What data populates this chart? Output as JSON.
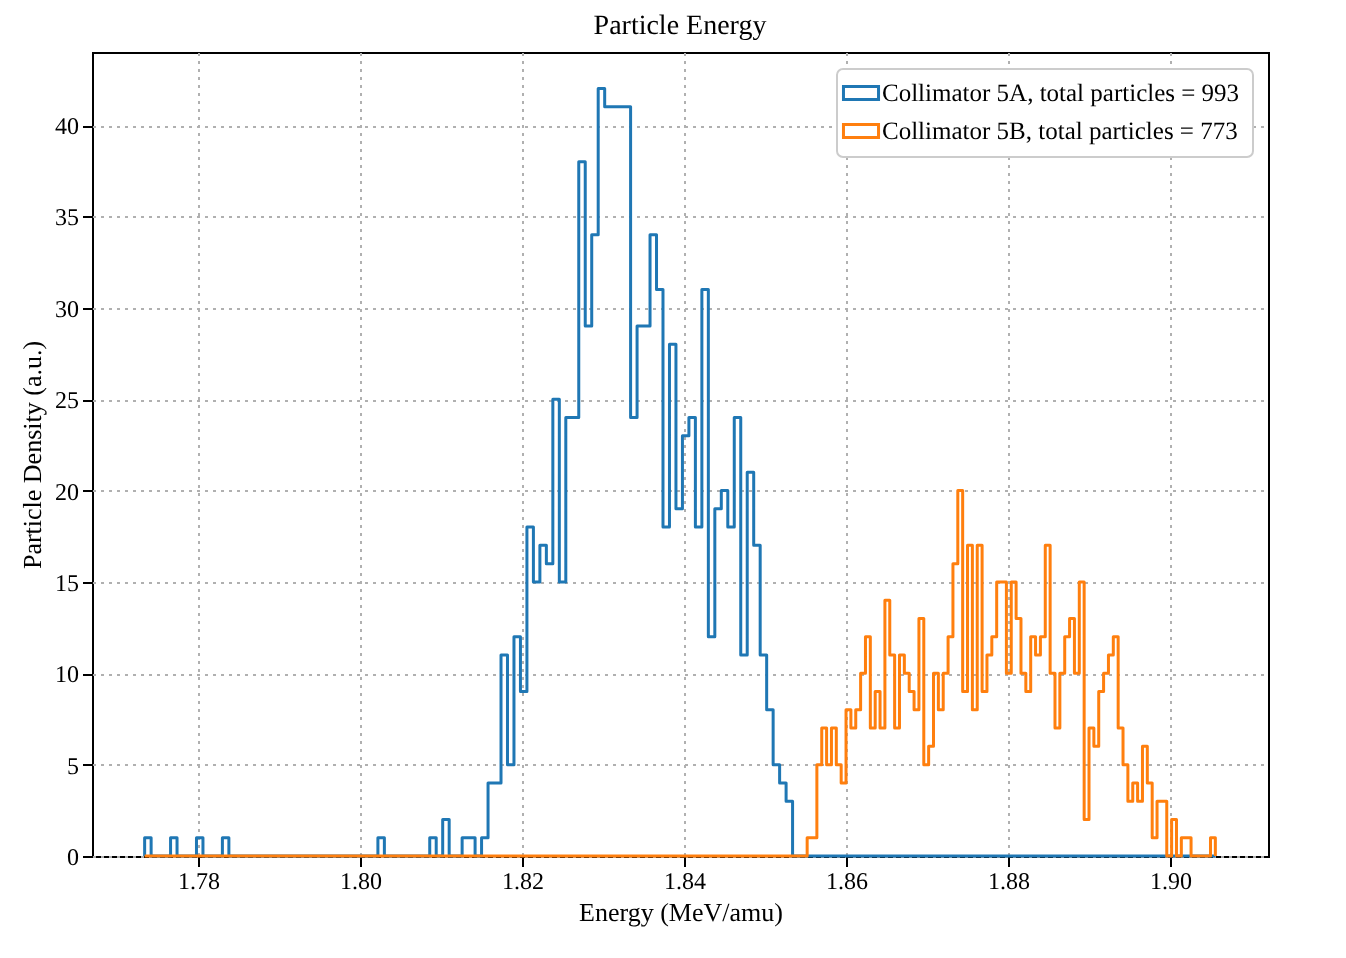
{
  "chart_data": {
    "type": "histogram",
    "title": "Particle Energy",
    "xlabel": "Energy (MeV/amu)",
    "ylabel": "Particle Density (a.u.)",
    "xlim": [
      1.7669,
      1.9121
    ],
    "ylim": [
      0,
      44
    ],
    "xticks": [
      {
        "value": 1.78,
        "label": "1.78"
      },
      {
        "value": 1.8,
        "label": "1.80"
      },
      {
        "value": 1.82,
        "label": "1.82"
      },
      {
        "value": 1.84,
        "label": "1.84"
      },
      {
        "value": 1.86,
        "label": "1.86"
      },
      {
        "value": 1.88,
        "label": "1.88"
      },
      {
        "value": 1.9,
        "label": "1.90"
      }
    ],
    "yticks": [
      0,
      5,
      10,
      15,
      20,
      25,
      30,
      35,
      40
    ],
    "grid": true,
    "legend": "top right",
    "bins": [
      1.7734,
      1.7742,
      1.775,
      1.7758,
      1.7766,
      1.7774,
      1.7782,
      1.779,
      1.7798,
      1.7806,
      1.7814,
      1.7822,
      1.783,
      1.7838,
      1.7846,
      1.7854,
      1.7862,
      1.787,
      1.7878,
      1.7886,
      1.7894,
      1.7902,
      1.791,
      1.7918,
      1.7926,
      1.7934,
      1.7942,
      1.795,
      1.7958,
      1.7966,
      1.7974,
      1.7982,
      1.799,
      1.7998,
      1.8006,
      1.8014,
      1.8022,
      1.803,
      1.8038,
      1.8046,
      1.8054,
      1.8062,
      1.807,
      1.8078,
      1.8086,
      1.8094,
      1.8102,
      1.811,
      1.8118,
      1.8126,
      1.8134,
      1.8142,
      1.815,
      1.8158,
      1.8166,
      1.8174,
      1.8182,
      1.819,
      1.8198,
      1.8206,
      1.8214,
      1.8222,
      1.823,
      1.8238,
      1.8246,
      1.8254,
      1.8262,
      1.827,
      1.8278,
      1.8286,
      1.8294,
      1.8302,
      1.831,
      1.8318,
      1.8326,
      1.8334,
      1.8342,
      1.835,
      1.8358,
      1.8366,
      1.8374,
      1.8382,
      1.839,
      1.8398,
      1.8406,
      1.8414,
      1.8422,
      1.843,
      1.8438,
      1.8446,
      1.8454,
      1.8462,
      1.847,
      1.8478,
      1.8486,
      1.8494,
      1.8502,
      1.851,
      1.8518,
      1.8526,
      1.8534,
      1.8552,
      1.8558,
      1.8564,
      1.857,
      1.8576,
      1.8582,
      1.8588,
      1.8594,
      1.86,
      1.8606,
      1.8612,
      1.8618,
      1.8624,
      1.863,
      1.8636,
      1.8642,
      1.8648,
      1.8654,
      1.866,
      1.8666,
      1.8672,
      1.8678,
      1.8684,
      1.869,
      1.8696,
      1.8702,
      1.8708,
      1.8714,
      1.872,
      1.8726,
      1.8732,
      1.8738,
      1.8744,
      1.875,
      1.8756,
      1.8762,
      1.8768,
      1.8774,
      1.878,
      1.8786,
      1.8792,
      1.8798,
      1.8804,
      1.881,
      1.8816,
      1.8822,
      1.8828,
      1.8834,
      1.884,
      1.8846,
      1.8852,
      1.8858,
      1.8864,
      1.887,
      1.8876,
      1.8882,
      1.8888,
      1.8894,
      1.89,
      1.8906,
      1.8912,
      1.8918,
      1.8924,
      1.893,
      1.8936,
      1.8942,
      1.8948,
      1.8954,
      1.896,
      1.8966,
      1.8972,
      1.8978,
      1.8984,
      1.899,
      1.8996,
      1.9002,
      1.9008,
      1.9014,
      1.902,
      1.9026,
      1.9032,
      1.9038,
      1.9044,
      1.905,
      1.9056
    ],
    "series": [
      {
        "name": "Collimator 5A, total particles = 993",
        "color": "#1f77b4",
        "values": [
          1,
          0,
          0,
          0,
          1,
          0,
          0,
          0,
          1,
          0,
          0,
          0,
          1,
          0,
          0,
          0,
          0,
          0,
          0,
          0,
          0,
          0,
          0,
          0,
          0,
          0,
          0,
          0,
          0,
          0,
          0,
          0,
          0,
          0,
          0,
          0,
          1,
          0,
          0,
          0,
          0,
          0,
          0,
          0,
          1,
          0,
          2,
          0,
          0,
          1,
          1,
          0,
          1,
          4,
          4,
          11,
          5,
          12,
          9,
          18,
          15,
          17,
          16,
          25,
          15,
          24,
          24,
          38,
          29,
          34,
          42,
          41,
          41,
          41,
          41,
          24,
          29,
          29,
          34,
          31,
          18,
          28,
          19,
          23,
          24,
          18,
          31,
          12,
          19,
          20,
          18,
          24,
          11,
          21,
          17,
          11,
          8,
          5,
          4,
          3,
          0,
          0,
          0,
          0,
          0,
          0,
          0,
          0,
          0,
          0,
          0,
          0,
          0,
          0,
          0,
          0,
          0,
          0,
          0,
          0,
          0,
          0,
          0,
          0,
          0,
          0,
          0,
          0,
          0,
          0,
          0,
          0,
          0,
          0,
          0,
          0,
          0,
          0,
          0,
          0,
          0,
          0,
          0,
          0,
          0,
          0,
          0,
          0,
          0,
          0,
          0,
          0,
          0,
          0,
          0,
          0,
          0,
          0,
          0,
          0,
          0,
          0,
          0,
          0,
          0,
          0,
          0,
          0,
          0,
          0,
          0,
          0,
          0,
          0,
          0,
          0,
          0,
          0,
          0,
          0,
          0,
          0,
          0,
          0,
          0
        ]
      },
      {
        "name": "Collimator 5B, total particles = 773",
        "color": "#ff7f0e",
        "values": [
          0,
          0,
          0,
          0,
          0,
          0,
          0,
          0,
          0,
          0,
          0,
          0,
          0,
          0,
          0,
          0,
          0,
          0,
          0,
          0,
          0,
          0,
          0,
          0,
          0,
          0,
          0,
          0,
          0,
          0,
          0,
          0,
          0,
          0,
          0,
          0,
          0,
          0,
          0,
          0,
          0,
          0,
          0,
          0,
          0,
          0,
          0,
          0,
          0,
          0,
          0,
          0,
          0,
          0,
          0,
          0,
          0,
          0,
          0,
          0,
          0,
          0,
          0,
          0,
          0,
          0,
          0,
          0,
          0,
          0,
          0,
          0,
          0,
          0,
          0,
          0,
          0,
          0,
          0,
          0,
          0,
          0,
          0,
          0,
          0,
          0,
          0,
          0,
          0,
          0,
          0,
          0,
          0,
          0,
          0,
          0,
          0,
          0,
          0,
          0,
          0,
          1,
          1,
          5,
          7,
          5,
          7,
          5,
          4,
          8,
          7,
          8,
          10,
          12,
          7,
          9,
          7,
          14,
          11,
          7,
          11,
          10,
          9,
          8,
          13,
          5,
          6,
          10,
          8,
          10,
          12,
          16,
          20,
          9,
          17,
          8,
          17,
          9,
          11,
          12,
          15,
          15,
          10,
          15,
          13,
          10,
          9,
          12,
          11,
          12,
          17,
          10,
          7,
          10,
          12,
          13,
          10,
          15,
          2,
          7,
          6,
          9,
          10,
          11,
          12,
          7,
          5,
          3,
          4,
          3,
          6,
          4,
          1,
          3,
          3,
          0,
          2,
          0,
          1,
          1,
          0,
          0,
          0,
          0,
          1
        ]
      }
    ]
  }
}
